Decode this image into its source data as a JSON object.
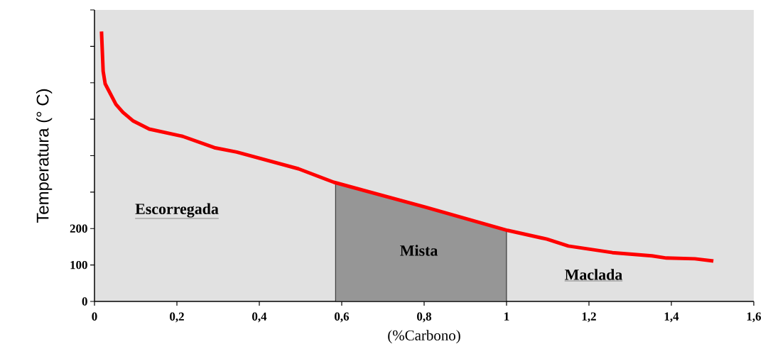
{
  "chart_data": {
    "type": "line",
    "xlabel": "(%Carbono)",
    "ylabel": "Temperatura (° C)",
    "xlim": [
      0,
      1.6
    ],
    "ylim": [
      0,
      800
    ],
    "xticks": [
      0,
      {
        "value": 0.2,
        "label": "0,2"
      },
      {
        "value": 0.4,
        "label": "0,4"
      },
      {
        "value": 0.6,
        "label": "0,6"
      },
      {
        "value": 0.8,
        "label": "0,8"
      },
      1,
      {
        "value": 1.2,
        "label": "1,2"
      },
      {
        "value": 1.4,
        "label": "1,4"
      },
      {
        "value": 1.6,
        "label": "1,6"
      }
    ],
    "yticks": [
      0,
      100,
      200,
      {
        "value": 300,
        "label": null
      },
      {
        "value": 400,
        "label": null
      },
      {
        "value": 500,
        "label": null
      },
      {
        "value": 600,
        "label": null
      },
      {
        "value": 700,
        "label": null
      },
      {
        "value": 800,
        "label": null
      }
    ],
    "series": [
      {
        "type": "area",
        "color": "#969696",
        "x": [
          0.585,
          0.6,
          0.7,
          0.8,
          0.9,
          1.0
        ],
        "values": [
          327,
          321,
          290,
          259,
          227,
          195
        ]
      },
      {
        "color": "#ff0000",
        "x": [
          0.017,
          0.021,
          0.026,
          0.052,
          0.069,
          0.093,
          0.133,
          0.214,
          0.291,
          0.345,
          0.495,
          0.581,
          0.802,
          1.002,
          1.098,
          1.15,
          1.257,
          1.353,
          1.388,
          1.457,
          1.502
        ],
        "values": [
          741,
          632,
          597,
          541,
          519,
          496,
          473,
          453,
          422,
          410,
          364,
          327,
          259,
          195,
          171,
          152,
          134,
          125,
          119,
          117,
          111
        ]
      }
    ],
    "annotations": [
      "Escorregada",
      "Mista",
      "Maclada"
    ]
  }
}
